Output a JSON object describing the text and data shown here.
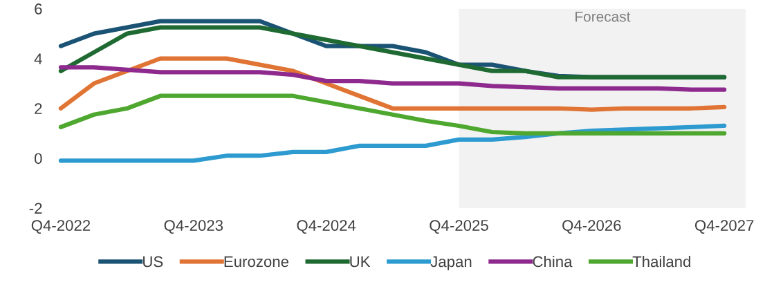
{
  "chart_data": {
    "type": "line",
    "categories": [
      "Q4-2022",
      null,
      null,
      null,
      "Q4-2023",
      null,
      null,
      null,
      "Q4-2024",
      null,
      null,
      null,
      "Q4-2025",
      null,
      null,
      null,
      "Q4-2026",
      null,
      null,
      null,
      "Q4-2027"
    ],
    "series": [
      {
        "name": "US",
        "color": "#1b5375",
        "values": [
          4.5,
          5.0,
          5.25,
          5.5,
          5.5,
          5.5,
          5.5,
          5.0,
          4.5,
          4.5,
          4.5,
          4.25,
          3.75,
          3.75,
          3.5,
          3.3,
          3.25,
          3.25,
          3.25,
          3.25,
          3.25
        ]
      },
      {
        "name": "Eurozone",
        "color": "#e07434",
        "values": [
          2.0,
          3.0,
          3.5,
          4.0,
          4.0,
          4.0,
          3.75,
          3.5,
          3.0,
          2.5,
          2.0,
          2.0,
          2.0,
          2.0,
          2.0,
          2.0,
          1.95,
          2.0,
          2.0,
          2.0,
          2.05
        ]
      },
      {
        "name": "UK",
        "color": "#1e6a32",
        "values": [
          3.5,
          4.25,
          5.0,
          5.25,
          5.25,
          5.25,
          5.25,
          5.0,
          4.75,
          4.5,
          4.25,
          4.0,
          3.75,
          3.5,
          3.5,
          3.25,
          3.25,
          3.25,
          3.25,
          3.25,
          3.25
        ]
      },
      {
        "name": "Japan",
        "color": "#2e9bd0",
        "values": [
          -0.1,
          -0.1,
          -0.1,
          -0.1,
          -0.1,
          0.1,
          0.1,
          0.25,
          0.25,
          0.5,
          0.5,
          0.5,
          0.75,
          0.75,
          0.85,
          1.0,
          1.1,
          1.15,
          1.2,
          1.25,
          1.3
        ]
      },
      {
        "name": "China",
        "color": "#8e2a8e",
        "values": [
          3.65,
          3.65,
          3.55,
          3.45,
          3.45,
          3.45,
          3.45,
          3.35,
          3.1,
          3.1,
          3.0,
          3.0,
          3.0,
          2.9,
          2.85,
          2.8,
          2.8,
          2.8,
          2.8,
          2.75,
          2.75
        ]
      },
      {
        "name": "Thailand",
        "color": "#4ea72e",
        "values": [
          1.25,
          1.75,
          2.0,
          2.5,
          2.5,
          2.5,
          2.5,
          2.5,
          2.25,
          2.0,
          1.75,
          1.5,
          1.3,
          1.05,
          1.0,
          1.0,
          1.0,
          1.0,
          1.0,
          1.0,
          1.0
        ]
      }
    ],
    "ylim": [
      -2,
      6
    ],
    "yticks": [
      -2,
      0,
      2,
      4,
      6
    ],
    "bands": [
      {
        "axis": "x",
        "from": "Q4-2025",
        "to": "Q4-2027",
        "label": "Forecast",
        "color": "#f2f2f2"
      }
    ],
    "grid": false,
    "legend": "bottom"
  }
}
